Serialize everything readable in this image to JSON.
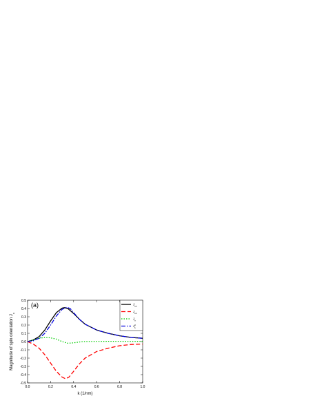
{
  "chart_data": {
    "type": "line",
    "panel_label": "(a)",
    "xlabel": "k (1/nm)",
    "ylabel": "Magnitude of spin orientation J",
    "ylabel_sub": "x",
    "xlim": [
      0.0,
      1.0
    ],
    "ylim": [
      -0.5,
      0.5
    ],
    "xticks": [
      0.0,
      0.2,
      0.4,
      0.6,
      0.8,
      1.0
    ],
    "xtick_labels": [
      "0.0",
      "0.2",
      "0.4",
      "0.6",
      "0.8",
      "1.0"
    ],
    "yticks": [
      -0.5,
      -0.4,
      -0.3,
      -0.2,
      -0.1,
      0.0,
      0.1,
      0.2,
      0.3,
      0.4,
      0.5
    ],
    "ytick_labels": [
      "-0.5",
      "-0.4",
      "-0.3",
      "-0.2",
      "-0.1",
      "0.0",
      "0.1",
      "0.2",
      "0.3",
      "0.4",
      "0.5"
    ],
    "grid": false,
    "legend_position": "top-right",
    "series": [
      {
        "name": "J",
        "name_sub": "tot",
        "name_sup": "",
        "color": "#000000",
        "dash": "",
        "x": [
          0.0,
          0.05,
          0.1,
          0.15,
          0.2,
          0.25,
          0.3,
          0.32,
          0.35,
          0.4,
          0.45,
          0.5,
          0.6,
          0.7,
          0.8,
          0.9,
          1.0
        ],
        "y": [
          0.0,
          0.02,
          0.06,
          0.14,
          0.25,
          0.35,
          0.405,
          0.41,
          0.4,
          0.34,
          0.27,
          0.21,
          0.14,
          0.1,
          0.07,
          0.05,
          0.04
        ]
      },
      {
        "name": "J",
        "name_sub": "eh",
        "name_sup": "",
        "color": "#ff0000",
        "dash": "6,3",
        "x": [
          0.0,
          0.05,
          0.1,
          0.15,
          0.2,
          0.25,
          0.3,
          0.33,
          0.36,
          0.4,
          0.45,
          0.5,
          0.6,
          0.7,
          0.8,
          0.9,
          1.0
        ],
        "y": [
          0.0,
          -0.03,
          -0.08,
          -0.16,
          -0.26,
          -0.36,
          -0.43,
          -0.45,
          -0.43,
          -0.36,
          -0.27,
          -0.2,
          -0.12,
          -0.08,
          -0.05,
          -0.035,
          -0.03
        ]
      },
      {
        "name": "J",
        "name_sub": "h",
        "name_sup": "",
        "color": "#00cc00",
        "dash": "1.5,2",
        "x": [
          0.0,
          0.05,
          0.1,
          0.15,
          0.2,
          0.25,
          0.3,
          0.35,
          0.4,
          0.45,
          0.5,
          0.6,
          0.7,
          0.8,
          0.9,
          1.0
        ],
        "y": [
          0.0,
          0.02,
          0.04,
          0.05,
          0.045,
          0.03,
          0.0,
          -0.02,
          -0.015,
          -0.005,
          0.0,
          0.002,
          0.003,
          0.003,
          0.002,
          0.002
        ]
      },
      {
        "name": "J",
        "name_sub": "h",
        "name_sup": "0",
        "color": "#0000dd",
        "dash": "6,2,1.5,2",
        "x": [
          0.0,
          0.05,
          0.1,
          0.15,
          0.2,
          0.25,
          0.3,
          0.34,
          0.37,
          0.4,
          0.45,
          0.5,
          0.6,
          0.7,
          0.8,
          0.9,
          1.0
        ],
        "y": [
          0.0,
          0.01,
          0.04,
          0.1,
          0.2,
          0.31,
          0.39,
          0.415,
          0.4,
          0.35,
          0.27,
          0.21,
          0.14,
          0.1,
          0.07,
          0.05,
          0.04
        ]
      }
    ]
  }
}
